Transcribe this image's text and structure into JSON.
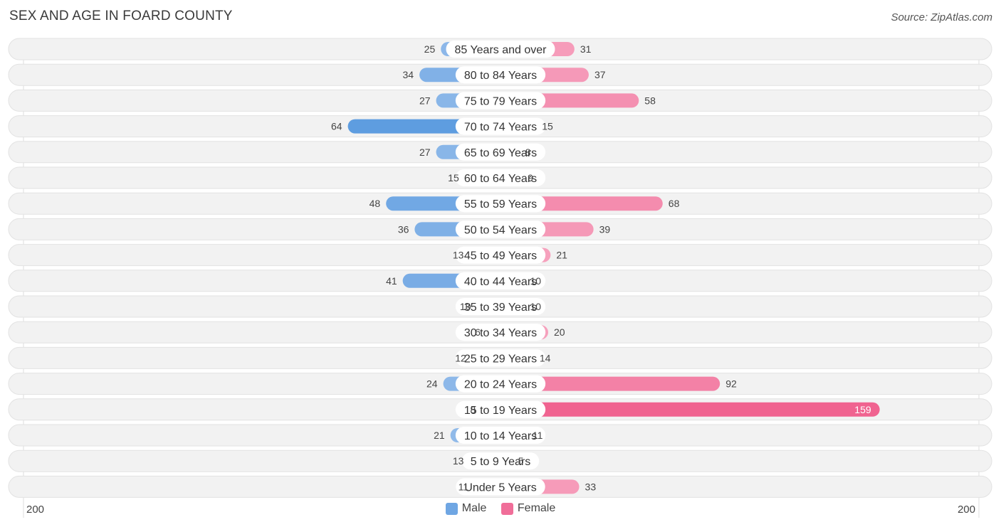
{
  "header": {
    "title": "SEX AND AGE IN FOARD COUNTY",
    "source": "Source: ZipAtlas.com"
  },
  "legend": {
    "male_label": "Male",
    "female_label": "Female"
  },
  "axis": {
    "left_label": "200",
    "right_label": "200"
  },
  "colors": {
    "male_light": "#a9c8ee",
    "male_dark": "#5e9de0",
    "female_light": "#f7aac4",
    "female_dark": "#f06390",
    "row_bg": "#f2f2f2",
    "row_border": "#e2e2e2"
  },
  "chart_data": {
    "type": "bar",
    "title": "SEX AND AGE IN FOARD COUNTY",
    "orientation": "horizontal-diverging",
    "xlim": [
      -200,
      200
    ],
    "categories": [
      "85 Years and over",
      "80 to 84 Years",
      "75 to 79 Years",
      "70 to 74 Years",
      "65 to 69 Years",
      "60 to 64 Years",
      "55 to 59 Years",
      "50 to 54 Years",
      "45 to 49 Years",
      "40 to 44 Years",
      "35 to 39 Years",
      "30 to 34 Years",
      "25 to 29 Years",
      "20 to 24 Years",
      "15 to 19 Years",
      "10 to 14 Years",
      "5 to 9 Years",
      "Under 5 Years"
    ],
    "series": [
      {
        "name": "Male",
        "values": [
          25,
          34,
          27,
          64,
          27,
          15,
          48,
          36,
          13,
          41,
          10,
          6,
          12,
          24,
          8,
          21,
          13,
          11
        ]
      },
      {
        "name": "Female",
        "values": [
          31,
          37,
          58,
          15,
          8,
          9,
          68,
          39,
          21,
          10,
          10,
          20,
          14,
          92,
          159,
          11,
          5,
          33
        ]
      }
    ],
    "legend_position": "bottom-center",
    "grid": false
  }
}
